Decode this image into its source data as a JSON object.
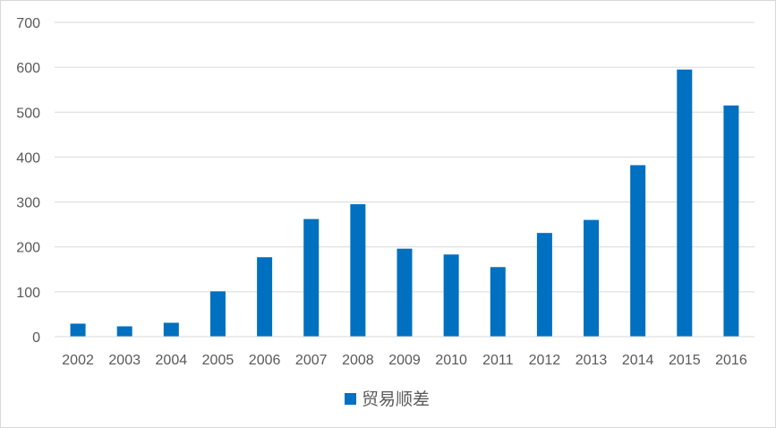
{
  "chart_data": {
    "type": "bar",
    "categories": [
      "2002",
      "2003",
      "2004",
      "2005",
      "2006",
      "2007",
      "2008",
      "2009",
      "2010",
      "2011",
      "2012",
      "2013",
      "2014",
      "2015",
      "2016"
    ],
    "series": [
      {
        "name": "贸易顺差",
        "color": "#0070C0",
        "values": [
          29,
          23,
          31,
          101,
          177,
          262,
          295,
          196,
          183,
          155,
          231,
          260,
          382,
          595,
          515
        ]
      }
    ],
    "ylim": [
      0,
      700
    ],
    "yticks": [
      0,
      100,
      200,
      300,
      400,
      500,
      600,
      700
    ],
    "grid": true,
    "legend_position": "bottom",
    "gridline_color": "#d9d9d9"
  }
}
